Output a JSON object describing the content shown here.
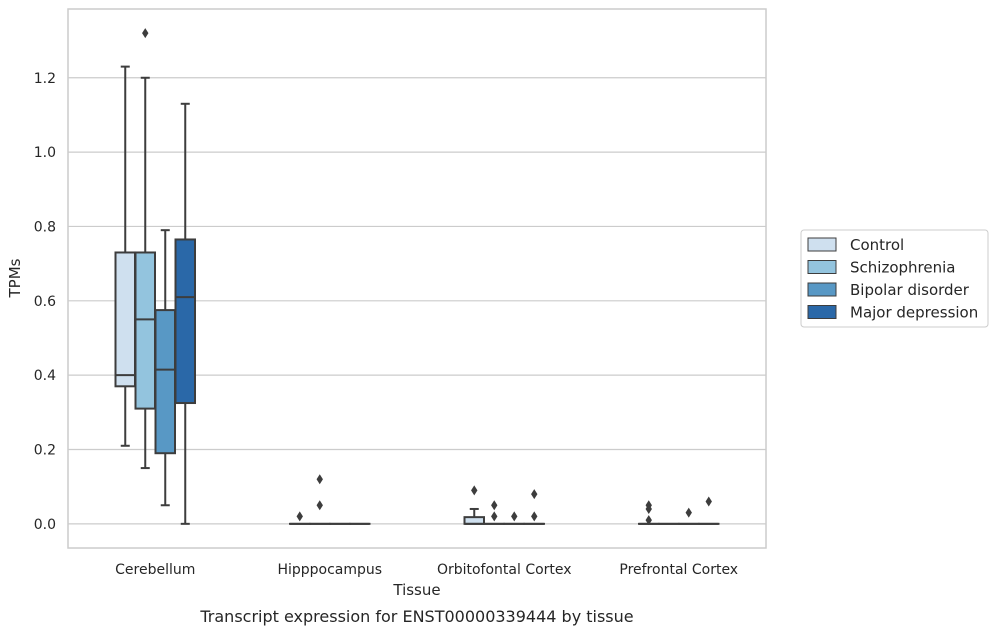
{
  "chart_data": {
    "type": "box",
    "title": "",
    "caption": "Transcript expression for ENST00000339444 by tissue",
    "xlabel": "Tissue",
    "ylabel": "TPMs",
    "ylim": [
      -0.065,
      1.385
    ],
    "yticks": [
      "0.0",
      "0.2",
      "0.4",
      "0.6",
      "0.8",
      "1.0",
      "1.2"
    ],
    "grid": true,
    "legend_position": "right",
    "categories": [
      "Cerebellum",
      "Hipppocampus",
      "Orbitofontal Cortex",
      "Prefrontal Cortex"
    ],
    "series": [
      {
        "name": "Control",
        "color": "#cfe0ef",
        "boxes": [
          {
            "whislo": 0.21,
            "q1": 0.37,
            "med": 0.4,
            "q3": 0.73,
            "whishi": 1.23,
            "fliers": []
          },
          {
            "whislo": 0.0,
            "q1": 0.0,
            "med": 0.0,
            "q3": 0.0,
            "whishi": 0.0,
            "fliers": [
              0.02
            ]
          },
          {
            "whislo": 0.0,
            "q1": 0.0,
            "med": 0.0,
            "q3": 0.018,
            "whishi": 0.04,
            "fliers": [
              0.09
            ]
          },
          {
            "whislo": 0.0,
            "q1": 0.0,
            "med": 0.0,
            "q3": 0.0,
            "whishi": 0.0,
            "fliers": [
              0.01,
              0.04,
              0.05
            ]
          }
        ]
      },
      {
        "name": "Schizophrenia",
        "color": "#93c4de",
        "boxes": [
          {
            "whislo": 0.15,
            "q1": 0.31,
            "med": 0.55,
            "q3": 0.73,
            "whishi": 1.2,
            "fliers": [
              1.32
            ]
          },
          {
            "whislo": 0.0,
            "q1": 0.0,
            "med": 0.0,
            "q3": 0.0,
            "whishi": 0.0,
            "fliers": [
              0.05,
              0.12
            ]
          },
          {
            "whislo": 0.0,
            "q1": 0.0,
            "med": 0.0,
            "q3": 0.0,
            "whishi": 0.0,
            "fliers": [
              0.02,
              0.05
            ]
          },
          {
            "whislo": 0.0,
            "q1": 0.0,
            "med": 0.0,
            "q3": 0.0,
            "whishi": 0.0,
            "fliers": []
          }
        ]
      },
      {
        "name": "Bipolar disorder",
        "color": "#5898c5",
        "boxes": [
          {
            "whislo": 0.05,
            "q1": 0.19,
            "med": 0.415,
            "q3": 0.575,
            "whishi": 0.79,
            "fliers": []
          },
          {
            "whislo": 0.0,
            "q1": 0.0,
            "med": 0.0,
            "q3": 0.0,
            "whishi": 0.0,
            "fliers": []
          },
          {
            "whislo": 0.0,
            "q1": 0.0,
            "med": 0.0,
            "q3": 0.0,
            "whishi": 0.0,
            "fliers": [
              0.02
            ]
          },
          {
            "whislo": 0.0,
            "q1": 0.0,
            "med": 0.0,
            "q3": 0.0,
            "whishi": 0.0,
            "fliers": [
              0.03
            ]
          }
        ]
      },
      {
        "name": "Major depression",
        "color": "#2a68a8",
        "boxes": [
          {
            "whislo": 0.0,
            "q1": 0.325,
            "med": 0.61,
            "q3": 0.765,
            "whishi": 1.13,
            "fliers": []
          },
          {
            "whislo": 0.0,
            "q1": 0.0,
            "med": 0.0,
            "q3": 0.0,
            "whishi": 0.0,
            "fliers": []
          },
          {
            "whislo": 0.0,
            "q1": 0.0,
            "med": 0.0,
            "q3": 0.0,
            "whishi": 0.0,
            "fliers": [
              0.02,
              0.08
            ]
          },
          {
            "whislo": 0.0,
            "q1": 0.0,
            "med": 0.0,
            "q3": 0.0,
            "whishi": 0.0,
            "fliers": [
              0.06
            ]
          }
        ]
      }
    ]
  }
}
